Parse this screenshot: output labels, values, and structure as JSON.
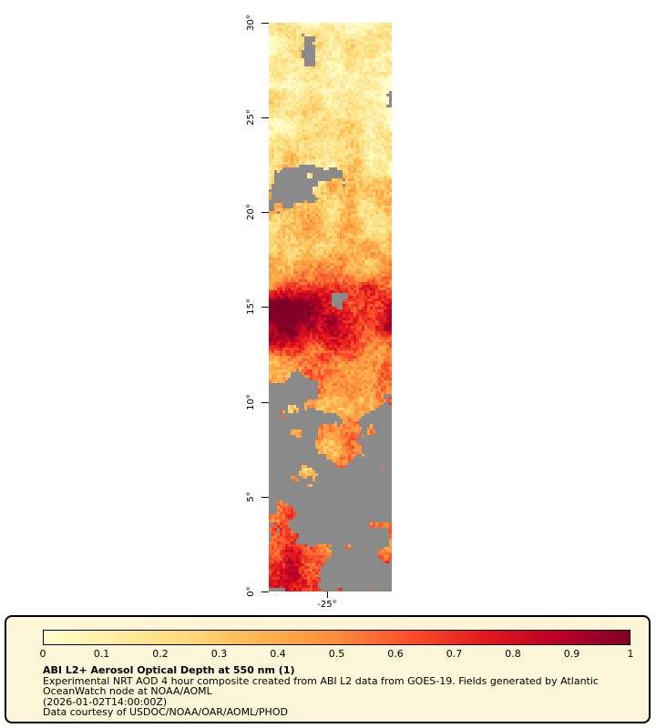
{
  "map": {
    "y_tick_labels": [
      "30°",
      "25°",
      "20°",
      "15°",
      "10°",
      "5°",
      "0°"
    ],
    "x_tick_labels": [
      "-25°"
    ],
    "missing_data_color": "#8a8a8a"
  },
  "legend": {
    "tick_labels": [
      "0",
      "0.1",
      "0.2",
      "0.3",
      "0.4",
      "0.5",
      "0.6",
      "0.7",
      "0.8",
      "0.9",
      "1"
    ],
    "title": "ABI L2+ Aerosol Optical Depth at 550 nm (1)",
    "description_line1": "Experimental NRT AOD 4 hour composite created from ABI L2 data from GOES-19. Fields generated by Atlantic",
    "description_line2": "OceanWatch node at NOAA/AOML",
    "timestamp_line": "(2026-01-02T14:00:00Z)",
    "credit_line": "Data courtesy of USDOC/NOAA/OAR/AOML/PHOD",
    "background": "#fdf6d8",
    "border_color": "#000000"
  },
  "colormap": {
    "name": "YlOrRd",
    "stops": [
      "#ffffcc",
      "#ffeda0",
      "#fed976",
      "#feb24c",
      "#fd8d3c",
      "#fc4e2a",
      "#e31a1c",
      "#bd0026",
      "#800026"
    ],
    "range": [
      0,
      1
    ]
  },
  "chart_data": {
    "type": "heatmap",
    "title": "ABI L2+ Aerosol Optical Depth at 550 nm (1)",
    "y_axis_ticks": [
      "0°",
      "5°",
      "10°",
      "15°",
      "20°",
      "25°",
      "30°"
    ],
    "x_axis_ticks": [
      "-25°"
    ],
    "colorbar_ticks": [
      0,
      0.1,
      0.2,
      0.3,
      0.4,
      0.5,
      0.6,
      0.7,
      0.8,
      0.9,
      1
    ],
    "colorbar_range": [
      0,
      1
    ],
    "legend_position": "bottom"
  }
}
